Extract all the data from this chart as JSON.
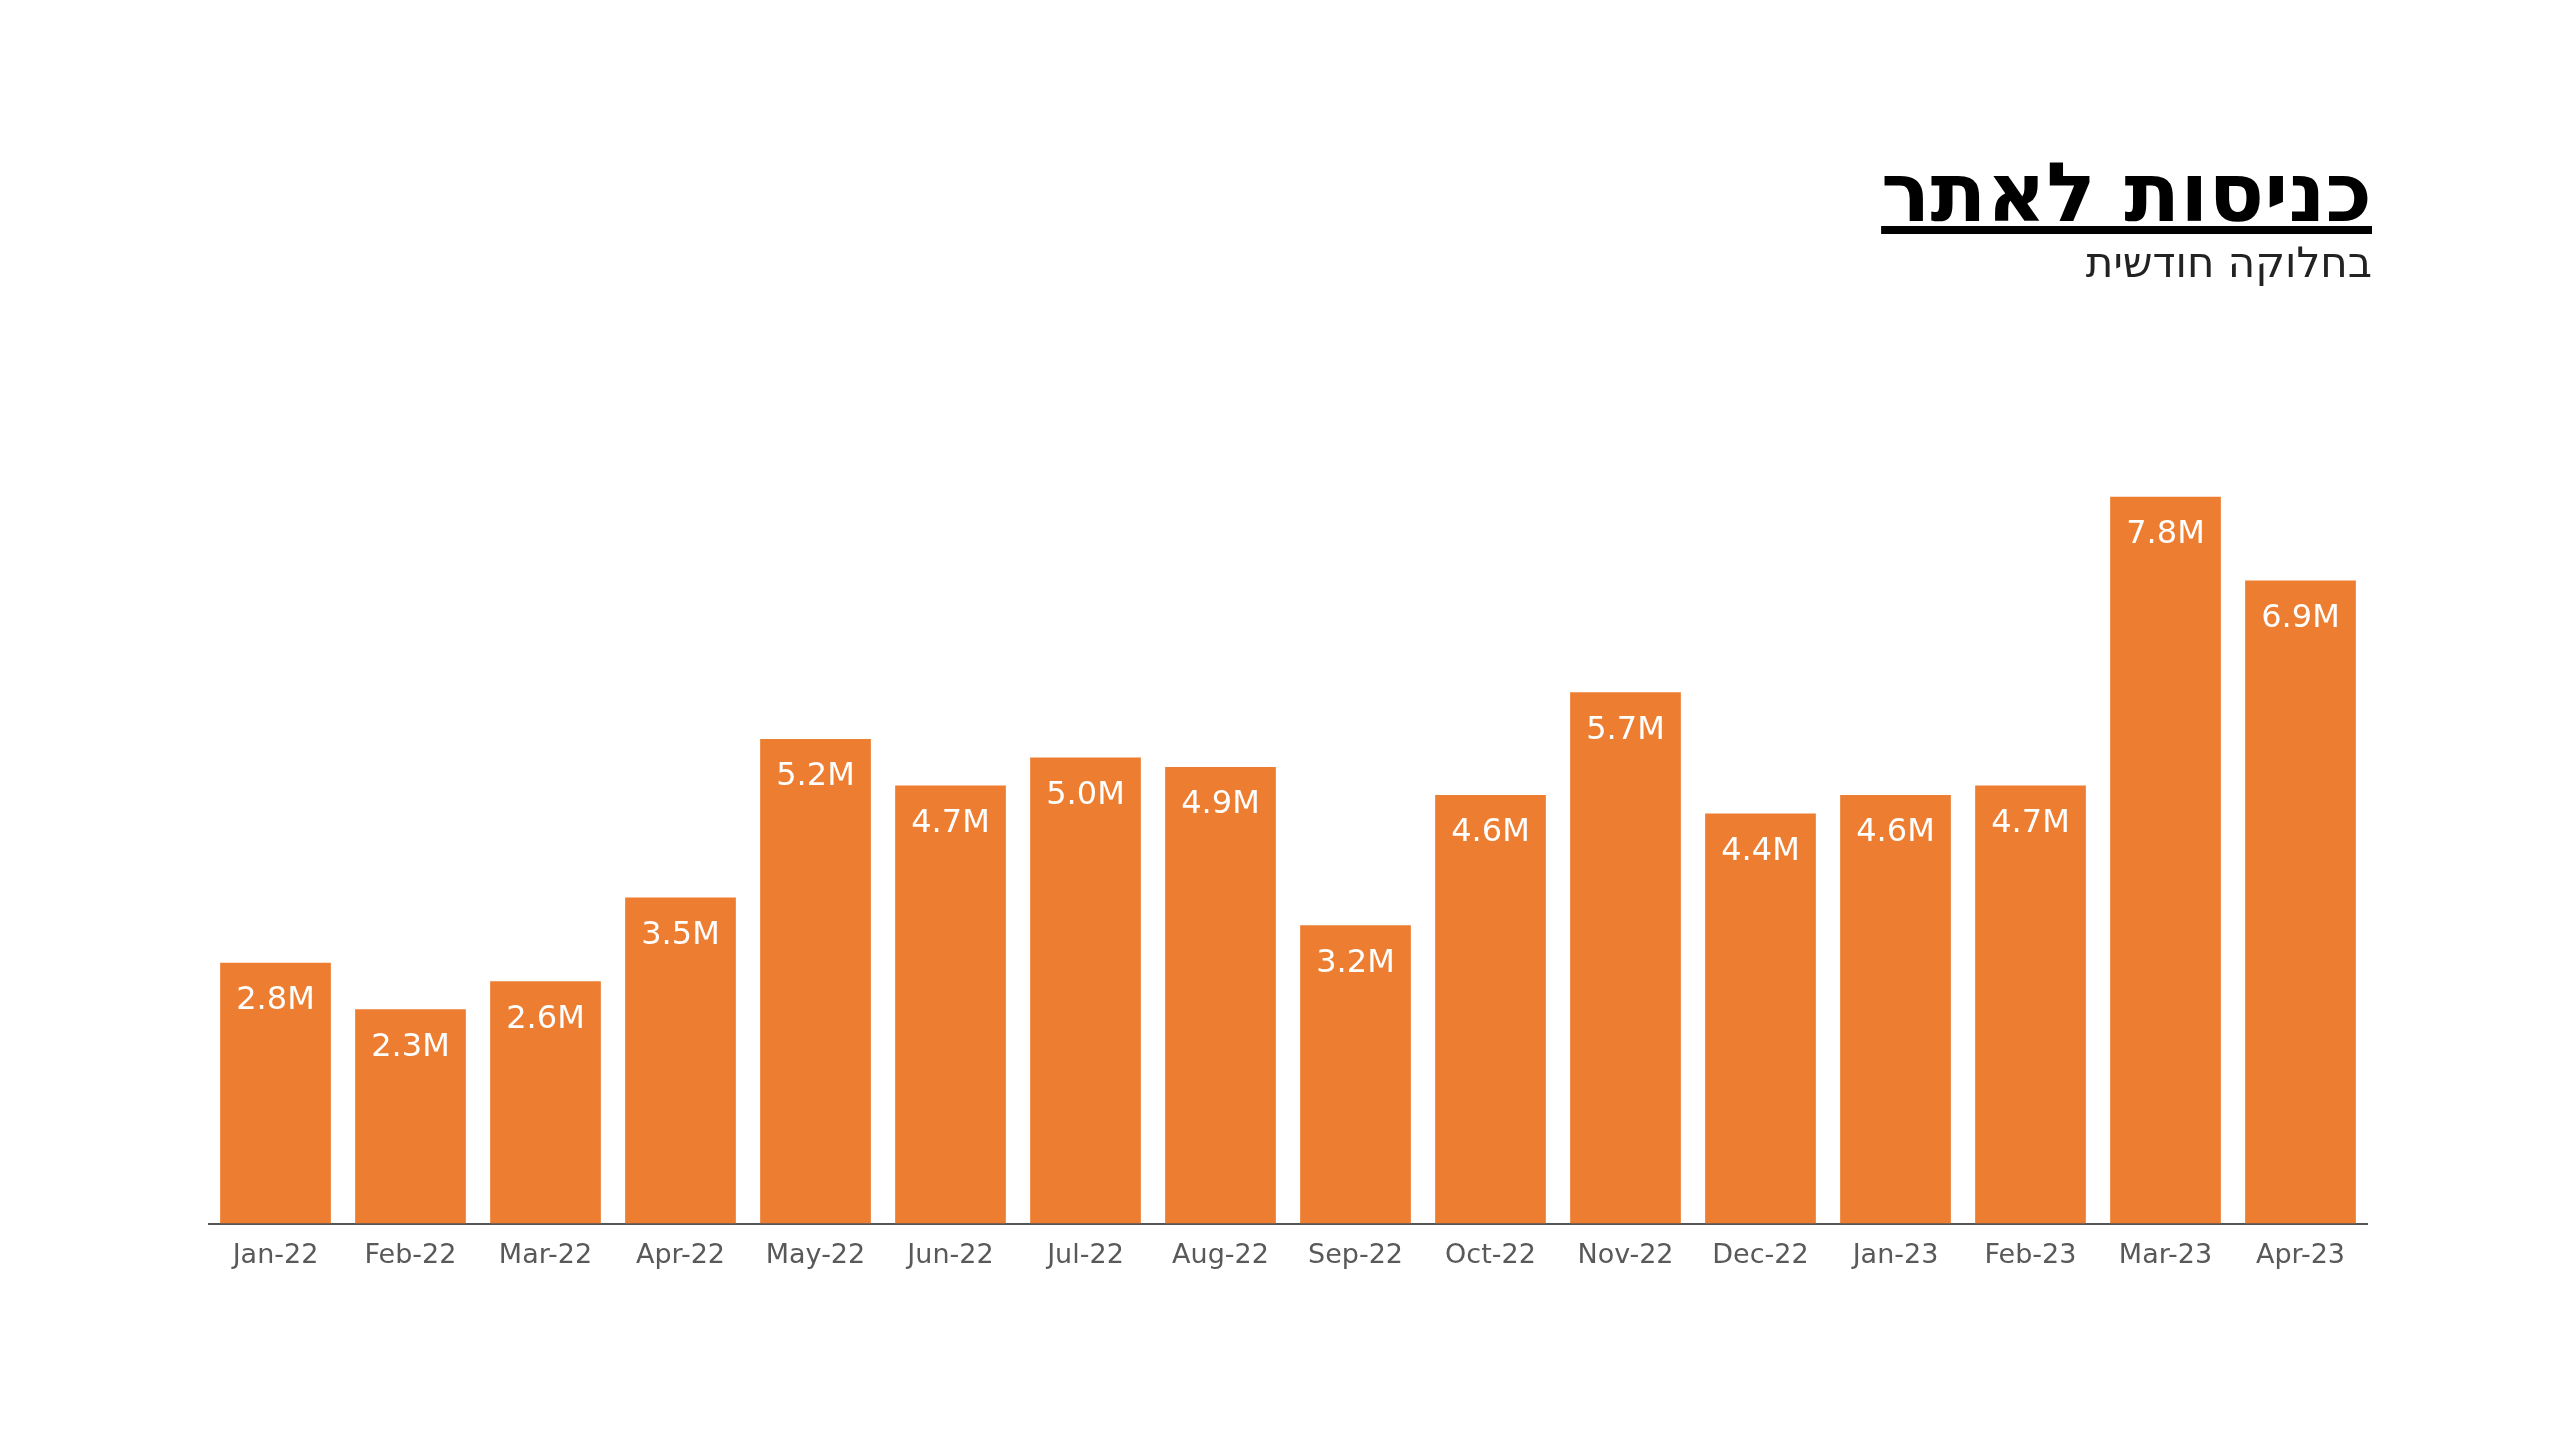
{
  "chart_data": {
    "type": "bar",
    "title": "כניסות לאתר",
    "subtitle": "בחלוקה חודשית",
    "categories": [
      "Jan-22",
      "Feb-22",
      "Mar-22",
      "Apr-22",
      "May-22",
      "Jun-22",
      "Jul-22",
      "Aug-22",
      "Sep-22",
      "Oct-22",
      "Nov-22",
      "Dec-22",
      "Jan-23",
      "Feb-23",
      "Mar-23",
      "Apr-23"
    ],
    "values": [
      2.8,
      2.3,
      2.6,
      3.5,
      5.2,
      4.7,
      5.0,
      4.9,
      3.2,
      4.6,
      5.7,
      4.4,
      4.6,
      4.7,
      7.8,
      6.9
    ],
    "value_labels": [
      "2.8M",
      "2.3M",
      "2.6M",
      "3.5M",
      "5.2M",
      "4.7M",
      "5.0M",
      "4.9M",
      "3.2M",
      "4.6M",
      "5.7M",
      "4.4M",
      "4.6M",
      "4.7M",
      "7.8M",
      "6.9M"
    ],
    "color": "#ed7d31",
    "grid": false,
    "legend": false
  }
}
